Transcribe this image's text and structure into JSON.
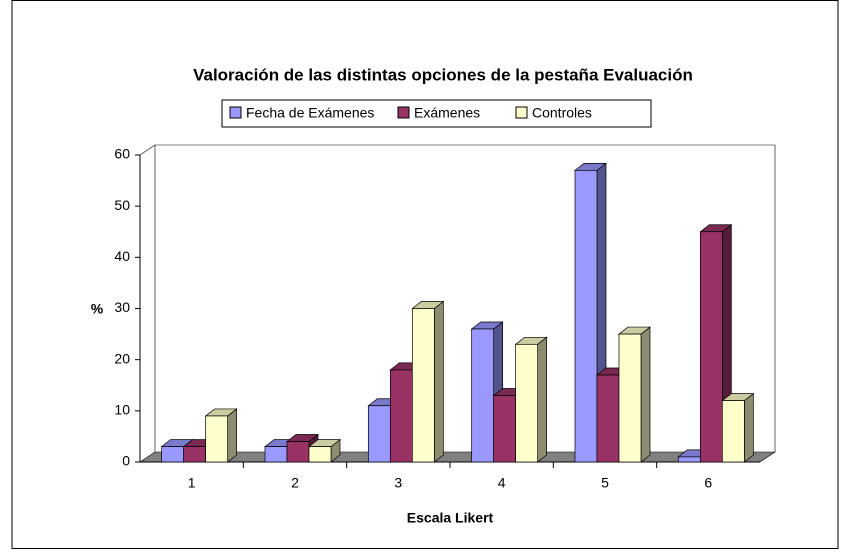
{
  "chart_data": {
    "type": "bar3d",
    "title": "Valoración de las distintas opciones de la pestaña Evaluación",
    "xlabel": "Escala Likert",
    "ylabel": "%",
    "categories": [
      "1",
      "2",
      "3",
      "4",
      "5",
      "6"
    ],
    "series": [
      {
        "name": "Fecha de Exámenes",
        "color": "#9999ff",
        "values": [
          3,
          3,
          11,
          26,
          57,
          1
        ]
      },
      {
        "name": "Exámenes",
        "color": "#993366",
        "values": [
          3,
          4,
          18,
          13,
          17,
          45
        ]
      },
      {
        "name": "Controles",
        "color": "#ffffcc",
        "values": [
          9,
          3,
          30,
          23,
          25,
          12
        ]
      }
    ],
    "ylim": [
      0,
      60
    ],
    "yticks": [
      0,
      10,
      20,
      30,
      40,
      50,
      60
    ],
    "legend": "top"
  }
}
